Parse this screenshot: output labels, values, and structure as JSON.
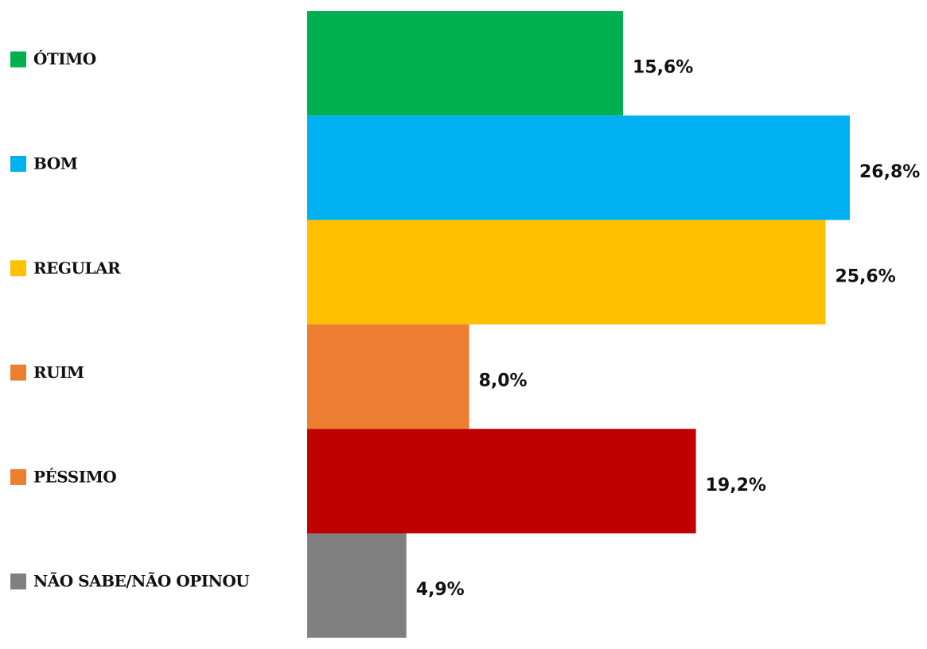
{
  "chart_data": {
    "type": "bar",
    "orientation": "horizontal",
    "categories": [
      "ÓTIMO",
      "BOM",
      "REGULAR",
      "RUIM",
      "PÉSSIMO",
      "NÃO SABE/NÃO OPINOU"
    ],
    "values": [
      15.6,
      26.8,
      25.6,
      8.0,
      19.2,
      4.9
    ],
    "value_labels": [
      "15,6%",
      "26,8%",
      "25,6%",
      "8,0%",
      "19,2%",
      "4,9%"
    ],
    "colors": [
      "#00b050",
      "#00b0f0",
      "#ffc000",
      "#ed7d31",
      "#c00000",
      "#808080"
    ],
    "legend_colors": [
      "#00b050",
      "#00b0f0",
      "#ffc000",
      "#ed7d31",
      "#ed7d31",
      "#808080"
    ]
  }
}
